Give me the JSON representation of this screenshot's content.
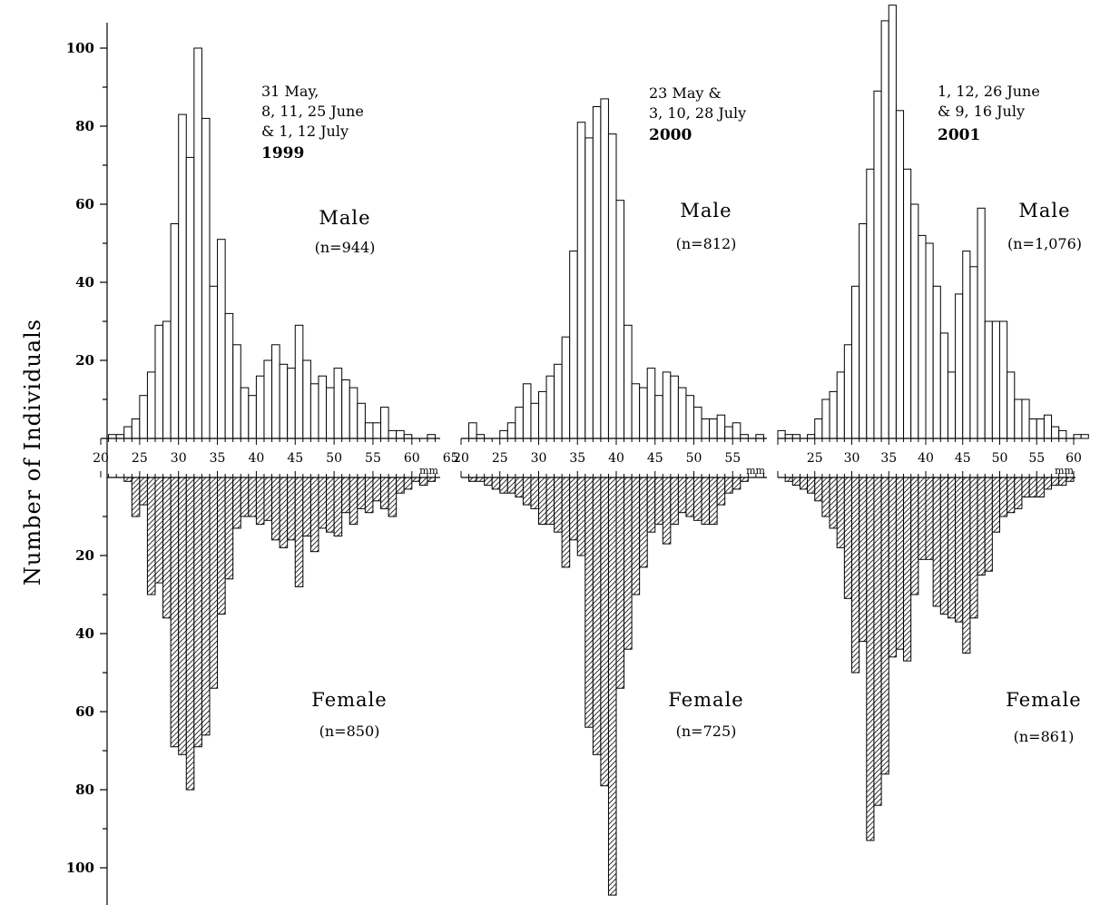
{
  "chart_data": {
    "type": "bar",
    "ylabel": "Number of Individuals",
    "y_axis": {
      "male_ticks": [
        20,
        40,
        60,
        80,
        100
      ],
      "female_ticks": [
        20,
        40,
        60,
        80,
        100
      ]
    },
    "x_unit": "mm",
    "bin_width_mm": 1,
    "panels": [
      {
        "dates": [
          "31 May,",
          "8, 11, 25 June",
          "&  1, 12 July"
        ],
        "year": "1999",
        "xlim": [
          20,
          65
        ],
        "x_ticks": [
          "20",
          "25",
          "30",
          "35",
          "40",
          "45",
          "50",
          "55",
          "60",
          "65"
        ],
        "male": {
          "label": "Male",
          "n_label": "(n=944)",
          "x_start": 21,
          "values": [
            1,
            1,
            3,
            5,
            11,
            17,
            29,
            30,
            55,
            83,
            72,
            100,
            82,
            39,
            51,
            32,
            24,
            13,
            11,
            16,
            20,
            24,
            19,
            18,
            29,
            20,
            14,
            16,
            13,
            18,
            15,
            13,
            9,
            4,
            4,
            8,
            2,
            2,
            1,
            0,
            0,
            1
          ]
        },
        "female": {
          "label": "Female",
          "n_label": "(n=850)",
          "x_start": 23,
          "values": [
            1,
            10,
            7,
            30,
            27,
            36,
            69,
            71,
            80,
            69,
            66,
            54,
            35,
            26,
            13,
            10,
            10,
            12,
            11,
            16,
            18,
            16,
            28,
            15,
            19,
            13,
            14,
            15,
            9,
            12,
            8,
            9,
            6,
            8,
            10,
            4,
            3,
            1,
            2,
            1
          ]
        }
      },
      {
        "dates": [
          "23 May &",
          "3, 10, 28 July"
        ],
        "year": "2000",
        "xlim": [
          20,
          59
        ],
        "x_ticks": [
          "20",
          "25",
          "30",
          "35",
          "40",
          "45",
          "50",
          "55"
        ],
        "male": {
          "label": "Male",
          "n_label": "(n=812)",
          "x_start": 21,
          "values": [
            4,
            1,
            0,
            0,
            2,
            4,
            8,
            14,
            9,
            12,
            16,
            19,
            26,
            48,
            81,
            77,
            85,
            87,
            78,
            61,
            29,
            14,
            13,
            18,
            11,
            17,
            16,
            13,
            11,
            8,
            5,
            5,
            6,
            3,
            4,
            1,
            0,
            1,
            0
          ]
        },
        "female": {
          "label": "Female",
          "n_label": "(n=725)",
          "x_start": 21,
          "values": [
            1,
            1,
            2,
            3,
            4,
            4,
            5,
            7,
            8,
            12,
            12,
            14,
            23,
            16,
            20,
            64,
            71,
            79,
            107,
            54,
            44,
            30,
            23,
            14,
            12,
            17,
            12,
            9,
            10,
            11,
            12,
            12,
            7,
            4,
            3,
            1,
            0,
            0,
            0
          ]
        }
      },
      {
        "dates": [
          "1, 12, 26 June",
          "& 9, 16 July"
        ],
        "year": "2001",
        "xlim": [
          20,
          60
        ],
        "x_ticks": [
          "25",
          "30",
          "35",
          "40",
          "45",
          "50",
          "55",
          "60"
        ],
        "male": {
          "label": "Male",
          "n_label": "(n=1,076)",
          "x_start": 20,
          "values": [
            2,
            1,
            1,
            0,
            1,
            5,
            10,
            12,
            17,
            24,
            39,
            55,
            69,
            89,
            107,
            111,
            84,
            69,
            60,
            52,
            50,
            39,
            27,
            17,
            37,
            48,
            44,
            59,
            30,
            30,
            30,
            17,
            10,
            10,
            5,
            5,
            6,
            3,
            2,
            0,
            1,
            1
          ]
        },
        "female": {
          "label": "Female",
          "n_label": "(n=861)",
          "x_start": 21,
          "values": [
            1,
            2,
            3,
            4,
            6,
            10,
            13,
            18,
            31,
            50,
            42,
            93,
            84,
            76,
            46,
            44,
            47,
            30,
            21,
            21,
            33,
            35,
            36,
            37,
            45,
            36,
            25,
            24,
            14,
            10,
            9,
            8,
            5,
            5,
            5,
            3,
            2,
            2,
            1,
            0
          ]
        }
      }
    ]
  }
}
